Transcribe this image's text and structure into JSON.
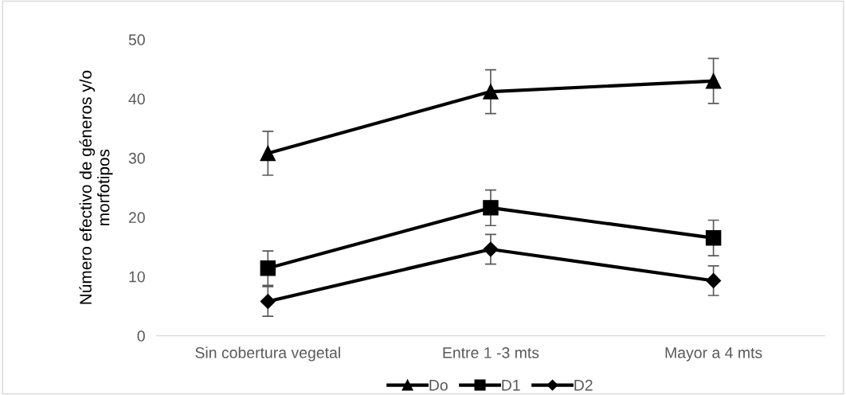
{
  "chart_data": {
    "type": "line",
    "ylabel": "Número efectivo de géneros y/o\nmorfotipos",
    "categories": [
      "Sin cobertura vegetal",
      "Entre 1 -3 mts",
      "Mayor a 4 mts"
    ],
    "series": [
      {
        "name": "Do",
        "color": "#000000",
        "marker": "triangle",
        "values": [
          30.8,
          41.2,
          43.0
        ],
        "errors": [
          3.7,
          3.7,
          3.8
        ]
      },
      {
        "name": "D1",
        "color": "#000000",
        "marker": "square",
        "values": [
          11.4,
          21.6,
          16.5
        ],
        "errors": [
          2.9,
          3.0,
          3.0
        ]
      },
      {
        "name": "D2",
        "color": "#000000",
        "marker": "diamond",
        "values": [
          5.8,
          14.6,
          9.3
        ],
        "errors": [
          2.5,
          2.5,
          2.5
        ]
      }
    ],
    "ylim": [
      0,
      50
    ],
    "yticks": [
      0,
      10,
      20,
      30,
      40,
      50
    ],
    "grid": false,
    "legend": "bottom",
    "line_style": "solid"
  }
}
